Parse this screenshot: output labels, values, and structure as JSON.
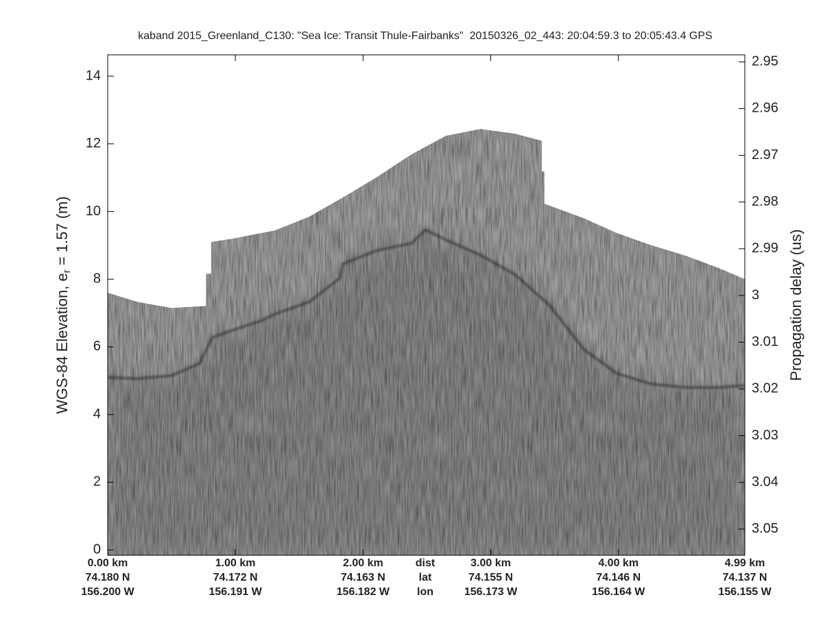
{
  "chart_data": {
    "type": "echogram",
    "title": "kaband 2015_Greenland_C130: \"Sea Ice: Transit Thule-Fairbanks\"  20150326_02_443: 20:04:59.3 to 20:05:43.4 GPS",
    "ylabel": "WGS-84 Elevation, e",
    "ylabel_sub": "r",
    "ylabel_rest": " = 1.57 (m)",
    "y2label": "Propagation delay (us)",
    "xlim": [
      0,
      4.99
    ],
    "ylim": [
      -0.16,
      14.63
    ],
    "y2lim": [
      3.0556,
      2.9485
    ],
    "yticks": [
      0,
      2,
      4,
      6,
      8,
      10,
      12,
      14
    ],
    "y2ticks": [
      2.95,
      2.96,
      2.97,
      2.98,
      2.99,
      3,
      3.01,
      3.02,
      3.03,
      3.04,
      3.05
    ],
    "xticks": [
      {
        "value": 0,
        "label": "0.00 km"
      },
      {
        "value": 1,
        "label": "1.00 km"
      },
      {
        "value": 2,
        "label": "2.00 km"
      },
      {
        "value": 3,
        "label": "3.00 km"
      },
      {
        "value": 4,
        "label": "4.00 km"
      },
      {
        "value": 4.99,
        "label": "4.99 km"
      }
    ],
    "lat_labels": [
      "74.180 N",
      "74.172 N",
      "74.163 N",
      "74.155 N",
      "74.146 N",
      "74.137 N"
    ],
    "lon_labels": [
      "156.200 W",
      "156.191 W",
      "156.182 W",
      "156.173 W",
      "156.164 W",
      "156.155 W"
    ],
    "axis_row_labels": [
      "dist",
      "lat",
      "lon"
    ],
    "series": [
      {
        "color": "#bdbdbd",
        "x": [
          0,
          0.23,
          0.5,
          0.77,
          0.77,
          0.81,
          0.81,
          0.98,
          1.31,
          1.58,
          1.84,
          2.11,
          2.38,
          2.65,
          2.92,
          3.19,
          3.4,
          3.4,
          3.42,
          3.42,
          3.73,
          3.99,
          4.26,
          4.53,
          4.8,
          4.99
        ],
        "values": [
          7.6,
          7.33,
          7.15,
          7.21,
          8.16,
          8.16,
          9.1,
          9.2,
          9.44,
          9.85,
          10.41,
          11.02,
          11.69,
          12.24,
          12.44,
          12.3,
          12.09,
          11.18,
          11.18,
          10.23,
          9.8,
          9.36,
          9.0,
          8.69,
          8.31,
          8.0
        ]
      },
      {
        "color": "#262626",
        "x": [
          0,
          0.23,
          0.5,
          0.72,
          0.82,
          1.03,
          1.2,
          1.31,
          1.58,
          1.82,
          1.84,
          2.11,
          2.38,
          2.49,
          2.65,
          2.92,
          3.19,
          3.46,
          3.73,
          3.99,
          4.26,
          4.53,
          4.8,
          4.99
        ],
        "values": [
          5.1,
          5.06,
          5.15,
          5.51,
          6.28,
          6.56,
          6.77,
          6.97,
          7.33,
          8.04,
          8.45,
          8.85,
          9.06,
          9.46,
          9.16,
          8.71,
          8.14,
          7.23,
          5.92,
          5.21,
          4.9,
          4.8,
          4.8,
          4.86
        ]
      }
    ]
  }
}
